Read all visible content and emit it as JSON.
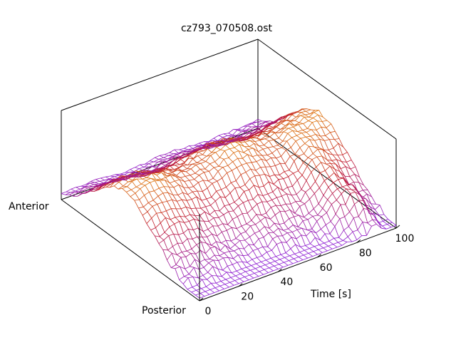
{
  "chart_data": {
    "type": "surface",
    "title": "cz793_070508.ost",
    "xlabel": "Time [s]",
    "x_ticks": [
      0,
      20,
      40,
      60,
      80,
      100
    ],
    "xlim": [
      0,
      100
    ],
    "y_axis_labels": {
      "start": "Posterior",
      "end": "Anterior"
    },
    "grid": false,
    "z_description": "wireframe surface rising to a ridge along the middle of the Posterior-Anterior axis, with small peaks near time 80-90",
    "colors": {
      "low": "#8a1ee0",
      "mid": "#c0182a",
      "high": "#f0b000",
      "axis": "#000000"
    }
  }
}
